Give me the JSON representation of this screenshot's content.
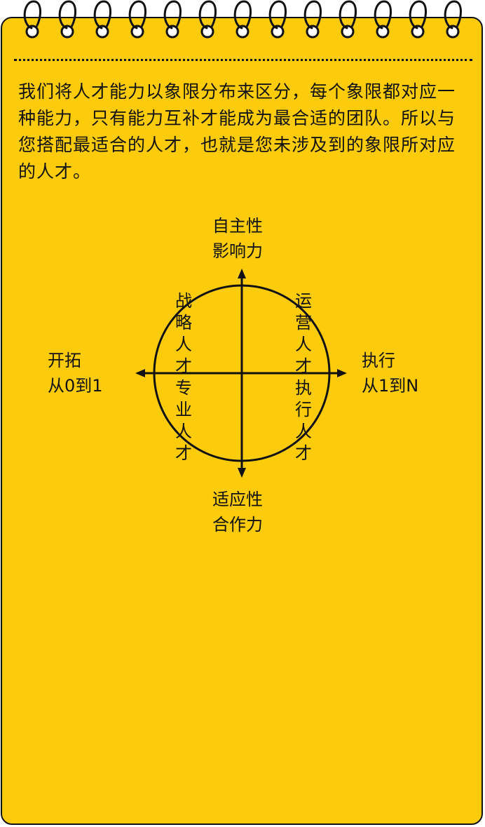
{
  "intro_text": "我们将人才能力以象限分布来区分，每个象限都对应一种能力，只有能力互补才能成为最合适的团队。所以与您搭配最适合的人才，也就是您未涉及到的象限所对应的人才。",
  "axes": {
    "top": {
      "line1": "自主性",
      "line2": "影响力"
    },
    "bottom": {
      "line1": "适应性",
      "line2": "合作力"
    },
    "left": {
      "line1": "开拓",
      "line2": "从0到1"
    },
    "right": {
      "line1": "执行",
      "line2": "从1到N"
    }
  },
  "quadrants": {
    "upper_left": "战略人才",
    "lower_left": "专业人才",
    "upper_right": "运营人才",
    "lower_right": "执行人才"
  },
  "colors": {
    "notepad_fill": "#fccc0c",
    "ink": "#111111"
  },
  "icons": [
    "spiral-ring-icon"
  ]
}
